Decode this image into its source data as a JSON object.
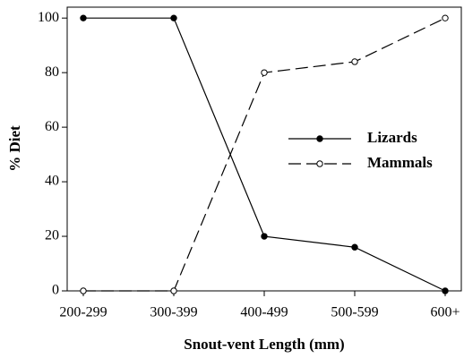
{
  "chart_data": {
    "type": "line",
    "x_label": "Snout-vent Length (mm)",
    "y_label": "% Diet",
    "categories": [
      "200-299",
      "300-399",
      "400-499",
      "500-599",
      "600+"
    ],
    "series": [
      {
        "name": "Lizards",
        "color": "#000000",
        "linestyle": "solid",
        "marker": "filled",
        "values": [
          100,
          100,
          20,
          16,
          0
        ]
      },
      {
        "name": "Mammals",
        "color": "#000000",
        "linestyle": "dashed",
        "marker": "open",
        "values": [
          0,
          0,
          80,
          84,
          100
        ]
      }
    ],
    "ylim": [
      0,
      104
    ],
    "yticks": [
      0,
      20,
      40,
      60,
      80,
      100
    ],
    "grid": false,
    "legend": "right"
  }
}
